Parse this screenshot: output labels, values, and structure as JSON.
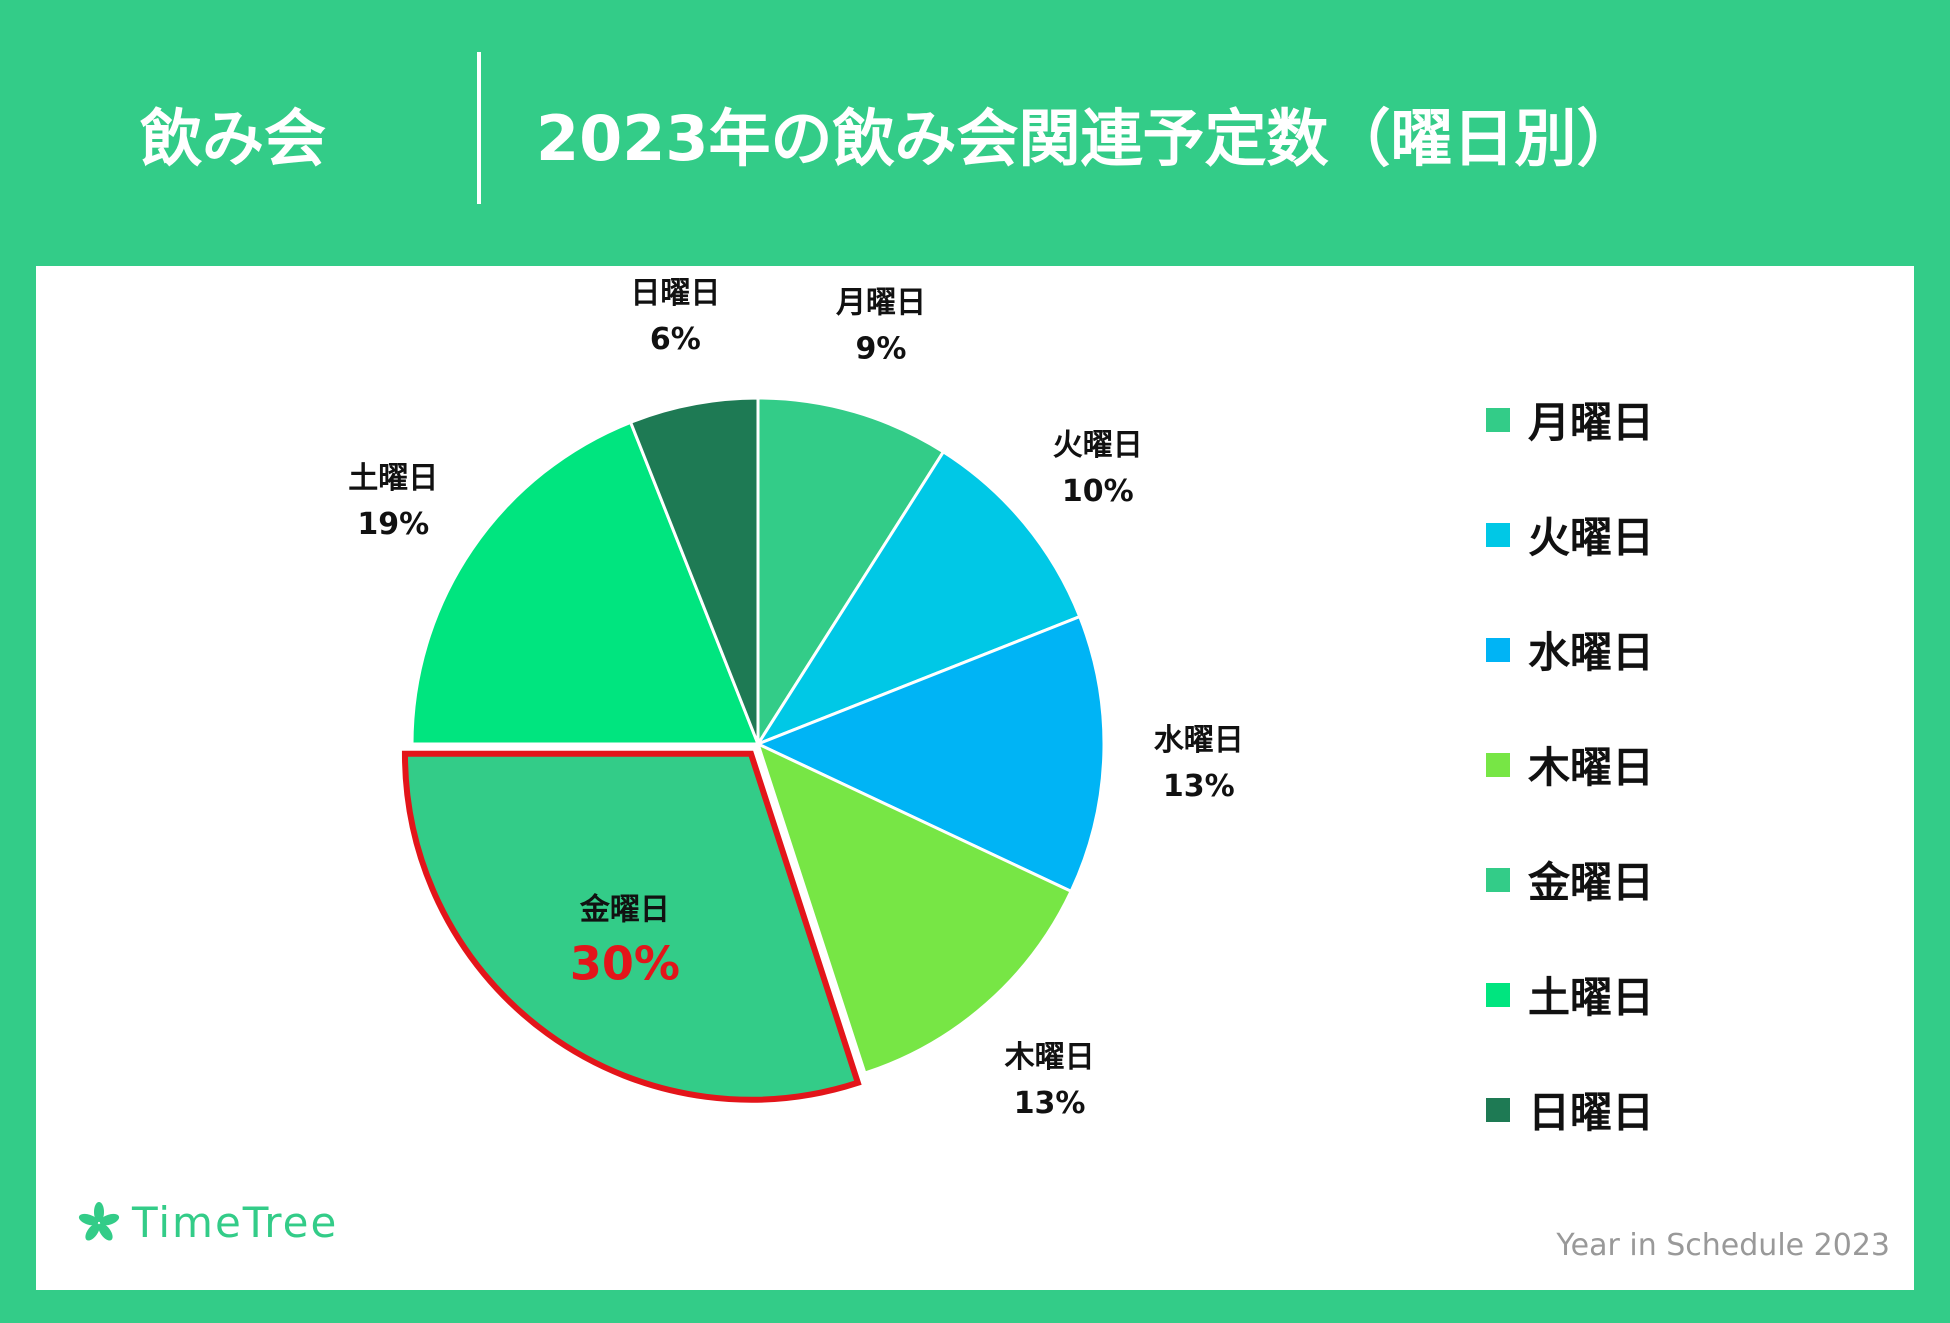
{
  "header": {
    "category": "飲み会",
    "title": "2023年の飲み会関連予定数（曜日別）"
  },
  "colors": {
    "background": "#33cc88",
    "panel": "#ffffff",
    "highlight": "#e3151a"
  },
  "chart_data": {
    "type": "pie",
    "title": "2023年の飲み会関連予定数（曜日別）",
    "categories": [
      "月曜日",
      "火曜日",
      "水曜日",
      "木曜日",
      "金曜日",
      "土曜日",
      "日曜日"
    ],
    "values": [
      9,
      10,
      13,
      13,
      30,
      19,
      6
    ],
    "labels": [
      "9%",
      "10%",
      "13%",
      "13%",
      "30%",
      "19%",
      "6%"
    ],
    "colors": [
      "#33cc88",
      "#00c8e6",
      "#00b4f5",
      "#77e645",
      "#33cc88",
      "#00e57f",
      "#1e7a54"
    ],
    "highlighted": "金曜日",
    "start": "12 o'clock",
    "direction": "clockwise",
    "legend_position": "right"
  },
  "branding": {
    "logo_text": "TimeTree",
    "logo_icon": "leaf-icon",
    "footer_note": "Year in Schedule 2023"
  }
}
